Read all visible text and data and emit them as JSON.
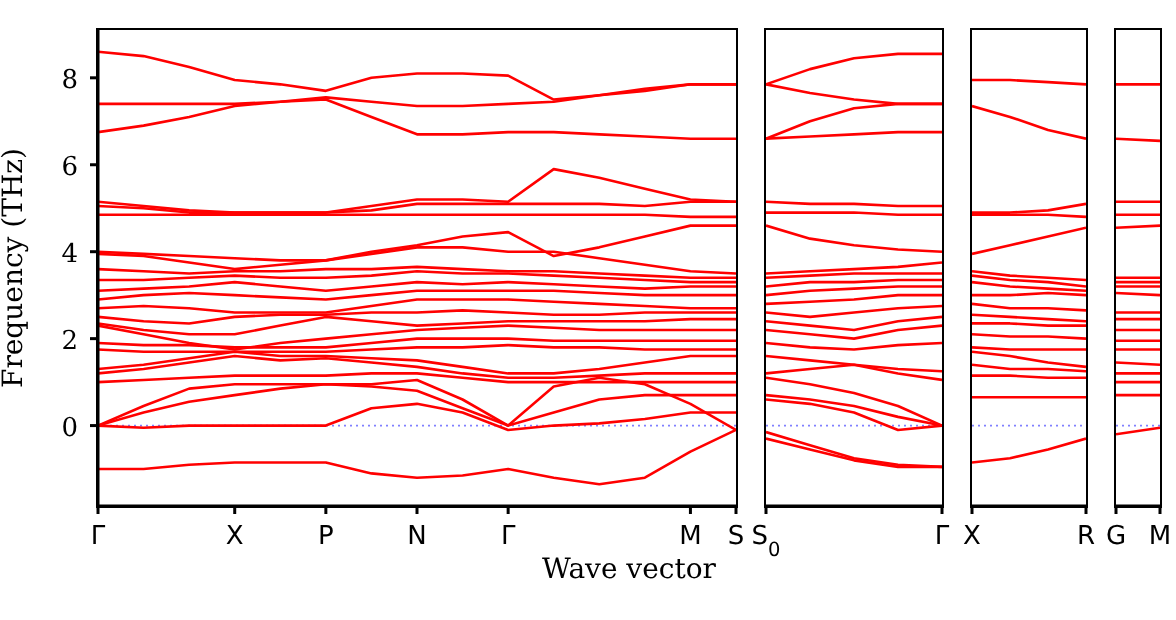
{
  "chart_data": [
    {
      "type": "line",
      "xlabel": "Wave vector",
      "ylabel": "Frequency (THz)",
      "categories": [
        "Γ",
        null,
        null,
        "X",
        null,
        "P",
        null,
        "N",
        null,
        "Γ",
        null,
        null,
        null,
        "M",
        "S"
      ],
      "ylim": [
        -1.85,
        9.1
      ],
      "yticks": [
        0,
        2,
        4,
        6,
        8
      ],
      "ref_lines": [
        {
          "axis": "y",
          "value": 0,
          "color": "#8080ff",
          "line_style": "dotted"
        }
      ],
      "series": [
        {
          "color": "#ff0000",
          "values": [
            8.6,
            8.5,
            8.25,
            7.95,
            7.85,
            7.7,
            8.0,
            8.1,
            8.1,
            8.05,
            7.5,
            7.6,
            7.7,
            7.85,
            7.85
          ]
        },
        {
          "color": "#ff0000",
          "values": [
            7.4,
            7.4,
            7.4,
            7.4,
            7.45,
            7.55,
            7.45,
            7.35,
            7.35,
            7.4,
            7.45,
            7.6,
            7.75,
            7.85,
            7.85
          ]
        },
        {
          "color": "#ff0000",
          "values": [
            6.75,
            6.9,
            7.1,
            7.35,
            7.45,
            7.5,
            7.1,
            6.7,
            6.7,
            6.75,
            6.75,
            6.7,
            6.65,
            6.6,
            6.6
          ]
        },
        {
          "color": "#ff0000",
          "values": [
            5.15,
            5.05,
            4.95,
            4.9,
            4.9,
            4.9,
            5.05,
            5.2,
            5.2,
            5.15,
            5.9,
            5.7,
            5.45,
            5.2,
            5.15
          ]
        },
        {
          "color": "#ff0000",
          "values": [
            5.05,
            5.0,
            4.9,
            4.9,
            4.9,
            4.9,
            4.95,
            5.1,
            5.1,
            5.1,
            5.1,
            5.1,
            5.05,
            5.15,
            5.15
          ]
        },
        {
          "color": "#ff0000",
          "values": [
            4.85,
            4.85,
            4.85,
            4.85,
            4.85,
            4.85,
            4.85,
            4.85,
            4.85,
            4.85,
            4.85,
            4.85,
            4.85,
            4.8,
            4.8
          ]
        },
        {
          "color": "#ff0000",
          "values": [
            4.0,
            3.95,
            3.9,
            3.85,
            3.8,
            3.8,
            4.0,
            4.15,
            4.35,
            4.45,
            3.9,
            4.1,
            4.35,
            4.6,
            4.6
          ]
        },
        {
          "color": "#ff0000",
          "values": [
            3.95,
            3.9,
            3.75,
            3.6,
            3.7,
            3.8,
            3.95,
            4.1,
            4.1,
            4.0,
            4.0,
            3.85,
            3.7,
            3.55,
            3.5
          ]
        },
        {
          "color": "#ff0000",
          "values": [
            3.6,
            3.55,
            3.5,
            3.55,
            3.55,
            3.6,
            3.6,
            3.65,
            3.6,
            3.55,
            3.55,
            3.5,
            3.45,
            3.4,
            3.4
          ]
        },
        {
          "color": "#ff0000",
          "values": [
            3.35,
            3.35,
            3.4,
            3.45,
            3.4,
            3.4,
            3.45,
            3.55,
            3.5,
            3.5,
            3.45,
            3.4,
            3.35,
            3.3,
            3.3
          ]
        },
        {
          "color": "#ff0000",
          "values": [
            3.1,
            3.15,
            3.2,
            3.3,
            3.2,
            3.1,
            3.2,
            3.3,
            3.25,
            3.3,
            3.25,
            3.2,
            3.15,
            3.2,
            3.2
          ]
        },
        {
          "color": "#ff0000",
          "values": [
            2.9,
            3.0,
            3.05,
            3.0,
            2.95,
            2.9,
            3.0,
            3.1,
            3.1,
            3.1,
            3.1,
            3.05,
            3.0,
            3.0,
            3.0
          ]
        },
        {
          "color": "#ff0000",
          "values": [
            2.7,
            2.75,
            2.7,
            2.6,
            2.6,
            2.6,
            2.75,
            2.9,
            2.9,
            2.9,
            2.85,
            2.8,
            2.75,
            2.7,
            2.7
          ]
        },
        {
          "color": "#ff0000",
          "values": [
            2.5,
            2.4,
            2.35,
            2.5,
            2.55,
            2.55,
            2.6,
            2.6,
            2.65,
            2.6,
            2.55,
            2.55,
            2.6,
            2.6,
            2.6
          ]
        },
        {
          "color": "#ff0000",
          "values": [
            2.35,
            2.2,
            2.1,
            2.1,
            2.3,
            2.5,
            2.4,
            2.3,
            2.35,
            2.4,
            2.4,
            2.4,
            2.4,
            2.45,
            2.45
          ]
        },
        {
          "color": "#ff0000",
          "values": [
            2.3,
            2.1,
            1.9,
            1.75,
            1.9,
            2.0,
            2.1,
            2.2,
            2.25,
            2.3,
            2.25,
            2.2,
            2.2,
            2.2,
            2.2
          ]
        },
        {
          "color": "#ff0000",
          "values": [
            1.9,
            1.85,
            1.85,
            1.8,
            1.8,
            1.8,
            1.9,
            2.0,
            2.0,
            2.0,
            1.95,
            1.95,
            1.95,
            1.95,
            1.95
          ]
        },
        {
          "color": "#ff0000",
          "values": [
            1.75,
            1.7,
            1.7,
            1.7,
            1.7,
            1.7,
            1.75,
            1.8,
            1.8,
            1.85,
            1.8,
            1.8,
            1.75,
            1.75,
            1.75
          ]
        },
        {
          "color": "#ff0000",
          "values": [
            1.3,
            1.4,
            1.55,
            1.7,
            1.6,
            1.6,
            1.55,
            1.5,
            1.35,
            1.2,
            1.2,
            1.3,
            1.45,
            1.6,
            1.6
          ]
        },
        {
          "color": "#ff0000",
          "values": [
            1.2,
            1.3,
            1.45,
            1.6,
            1.5,
            1.55,
            1.45,
            1.35,
            1.2,
            1.1,
            1.1,
            1.15,
            1.2,
            1.2,
            1.2
          ]
        },
        {
          "color": "#ff0000",
          "values": [
            1.0,
            1.05,
            1.1,
            1.15,
            1.15,
            1.15,
            1.2,
            1.2,
            1.1,
            1.0,
            1.0,
            1.0,
            1.0,
            1.0,
            1.0
          ]
        },
        {
          "color": "#ff0000",
          "values": [
            0,
            0.45,
            0.85,
            0.95,
            0.95,
            0.95,
            0.95,
            1.05,
            0.6,
            0,
            0.9,
            1.1,
            0.95,
            0.5,
            -0.1
          ]
        },
        {
          "color": "#ff0000",
          "values": [
            0,
            0.3,
            0.55,
            0.7,
            0.85,
            0.95,
            0.9,
            0.8,
            0.4,
            0,
            0.3,
            0.6,
            0.7,
            0.7,
            0.7
          ]
        },
        {
          "color": "#ff0000",
          "values": [
            0,
            -0.05,
            0,
            0,
            0,
            0,
            0.4,
            0.5,
            0.3,
            -0.1,
            0,
            0.05,
            0.15,
            0.3,
            0.3
          ]
        },
        {
          "color": "#ff0000",
          "values": [
            -1.0,
            -1.0,
            -0.9,
            -0.85,
            -0.85,
            -0.85,
            -1.1,
            -1.2,
            -1.15,
            -1.0,
            -1.2,
            -1.35,
            -1.2,
            -0.6,
            -0.1
          ]
        }
      ]
    },
    {
      "type": "line",
      "categories": [
        "S$_{0}$",
        null,
        null,
        null,
        "Γ"
      ],
      "ylim": [
        -1.85,
        9.1
      ],
      "yticks": [
        0,
        2,
        4,
        6,
        8
      ],
      "tick_labels": "x",
      "ref_lines": [
        {
          "axis": "y",
          "value": 0,
          "color": "#8080ff",
          "line_style": "dotted"
        }
      ],
      "series": [
        {
          "color": "#ff0000",
          "values": [
            7.85,
            8.2,
            8.45,
            8.55,
            8.55
          ]
        },
        {
          "color": "#ff0000",
          "values": [
            7.85,
            7.65,
            7.5,
            7.4,
            7.4
          ]
        },
        {
          "color": "#ff0000",
          "values": [
            6.6,
            7.0,
            7.3,
            7.4,
            7.4
          ]
        },
        {
          "color": "#ff0000",
          "values": [
            6.6,
            6.65,
            6.7,
            6.75,
            6.75
          ]
        },
        {
          "color": "#ff0000",
          "values": [
            5.15,
            5.1,
            5.1,
            5.05,
            5.05
          ]
        },
        {
          "color": "#ff0000",
          "values": [
            4.9,
            4.9,
            4.9,
            4.85,
            4.85
          ]
        },
        {
          "color": "#ff0000",
          "values": [
            4.6,
            4.3,
            4.15,
            4.05,
            4.0
          ]
        },
        {
          "color": "#ff0000",
          "values": [
            3.5,
            3.55,
            3.6,
            3.65,
            3.75
          ]
        },
        {
          "color": "#ff0000",
          "values": [
            3.4,
            3.45,
            3.5,
            3.5,
            3.5
          ]
        },
        {
          "color": "#ff0000",
          "values": [
            3.2,
            3.3,
            3.3,
            3.35,
            3.35
          ]
        },
        {
          "color": "#ff0000",
          "values": [
            3.0,
            3.1,
            3.15,
            3.2,
            3.2
          ]
        },
        {
          "color": "#ff0000",
          "values": [
            2.8,
            2.85,
            2.9,
            3.0,
            3.0
          ]
        },
        {
          "color": "#ff0000",
          "values": [
            2.6,
            2.5,
            2.6,
            2.7,
            2.75
          ]
        },
        {
          "color": "#ff0000",
          "values": [
            2.4,
            2.3,
            2.2,
            2.4,
            2.5
          ]
        },
        {
          "color": "#ff0000",
          "values": [
            2.2,
            2.1,
            2.0,
            2.2,
            2.3
          ]
        },
        {
          "color": "#ff0000",
          "values": [
            1.9,
            1.8,
            1.75,
            1.85,
            1.9
          ]
        },
        {
          "color": "#ff0000",
          "values": [
            1.6,
            1.5,
            1.4,
            1.3,
            1.25
          ]
        },
        {
          "color": "#ff0000",
          "values": [
            1.2,
            1.3,
            1.4,
            1.2,
            1.05
          ]
        },
        {
          "color": "#ff0000",
          "values": [
            1.1,
            0.95,
            0.75,
            0.45,
            0
          ]
        },
        {
          "color": "#ff0000",
          "values": [
            0.7,
            0.6,
            0.45,
            0.2,
            0
          ]
        },
        {
          "color": "#ff0000",
          "values": [
            0.6,
            0.5,
            0.3,
            -0.1,
            0
          ]
        },
        {
          "color": "#ff0000",
          "values": [
            -0.15,
            -0.45,
            -0.75,
            -0.9,
            -0.95
          ]
        },
        {
          "color": "#ff0000",
          "values": [
            -0.3,
            -0.55,
            -0.8,
            -0.95,
            -0.95
          ]
        }
      ]
    },
    {
      "type": "line",
      "categories": [
        "X",
        null,
        null,
        "R"
      ],
      "ylim": [
        -1.85,
        9.1
      ],
      "yticks": [
        0,
        2,
        4,
        6,
        8
      ],
      "tick_labels": "x",
      "ref_lines": [
        {
          "axis": "y",
          "value": 0,
          "color": "#8080ff",
          "line_style": "dotted"
        }
      ],
      "series": [
        {
          "color": "#ff0000",
          "values": [
            7.95,
            7.95,
            7.9,
            7.85
          ]
        },
        {
          "color": "#ff0000",
          "values": [
            7.35,
            7.1,
            6.8,
            6.6
          ]
        },
        {
          "color": "#ff0000",
          "values": [
            4.9,
            4.9,
            4.95,
            5.1
          ]
        },
        {
          "color": "#ff0000",
          "values": [
            4.85,
            4.85,
            4.85,
            4.8
          ]
        },
        {
          "color": "#ff0000",
          "values": [
            3.95,
            4.15,
            4.35,
            4.55
          ]
        },
        {
          "color": "#ff0000",
          "values": [
            3.55,
            3.45,
            3.4,
            3.35
          ]
        },
        {
          "color": "#ff0000",
          "values": [
            3.45,
            3.35,
            3.3,
            3.2
          ]
        },
        {
          "color": "#ff0000",
          "values": [
            3.3,
            3.2,
            3.15,
            3.1
          ]
        },
        {
          "color": "#ff0000",
          "values": [
            3.0,
            3.0,
            3.05,
            3.0
          ]
        },
        {
          "color": "#ff0000",
          "values": [
            2.8,
            2.7,
            2.7,
            2.65
          ]
        },
        {
          "color": "#ff0000",
          "values": [
            2.55,
            2.5,
            2.45,
            2.4
          ]
        },
        {
          "color": "#ff0000",
          "values": [
            2.35,
            2.35,
            2.3,
            2.3
          ]
        },
        {
          "color": "#ff0000",
          "values": [
            2.1,
            2.05,
            2.05,
            2.0
          ]
        },
        {
          "color": "#ff0000",
          "values": [
            1.8,
            1.75,
            1.75,
            1.75
          ]
        },
        {
          "color": "#ff0000",
          "values": [
            1.7,
            1.6,
            1.45,
            1.35
          ]
        },
        {
          "color": "#ff0000",
          "values": [
            1.4,
            1.3,
            1.3,
            1.25
          ]
        },
        {
          "color": "#ff0000",
          "values": [
            1.15,
            1.15,
            1.1,
            1.1
          ]
        },
        {
          "color": "#ff0000",
          "values": [
            0.65,
            0.65,
            0.65,
            0.65
          ]
        },
        {
          "color": "#ff0000",
          "values": [
            -0.85,
            -0.75,
            -0.55,
            -0.3
          ]
        }
      ]
    },
    {
      "type": "line",
      "categories": [
        "G",
        "M"
      ],
      "ylim": [
        -1.85,
        9.1
      ],
      "yticks": [
        0,
        2,
        4,
        6,
        8
      ],
      "tick_labels": "x",
      "ref_lines": [
        {
          "axis": "y",
          "value": 0,
          "color": "#8080ff",
          "line_style": "dotted"
        }
      ],
      "series": [
        {
          "color": "#ff0000",
          "values": [
            7.85,
            7.85
          ]
        },
        {
          "color": "#ff0000",
          "values": [
            6.6,
            6.55
          ]
        },
        {
          "color": "#ff0000",
          "values": [
            5.15,
            5.15
          ]
        },
        {
          "color": "#ff0000",
          "values": [
            4.85,
            4.85
          ]
        },
        {
          "color": "#ff0000",
          "values": [
            4.55,
            4.6
          ]
        },
        {
          "color": "#ff0000",
          "values": [
            3.4,
            3.4
          ]
        },
        {
          "color": "#ff0000",
          "values": [
            3.3,
            3.3
          ]
        },
        {
          "color": "#ff0000",
          "values": [
            3.2,
            3.2
          ]
        },
        {
          "color": "#ff0000",
          "values": [
            3.05,
            3.0
          ]
        },
        {
          "color": "#ff0000",
          "values": [
            2.6,
            2.6
          ]
        },
        {
          "color": "#ff0000",
          "values": [
            2.45,
            2.45
          ]
        },
        {
          "color": "#ff0000",
          "values": [
            2.2,
            2.2
          ]
        },
        {
          "color": "#ff0000",
          "values": [
            1.95,
            1.95
          ]
        },
        {
          "color": "#ff0000",
          "values": [
            1.75,
            1.75
          ]
        },
        {
          "color": "#ff0000",
          "values": [
            1.45,
            1.4
          ]
        },
        {
          "color": "#ff0000",
          "values": [
            1.2,
            1.2
          ]
        },
        {
          "color": "#ff0000",
          "values": [
            1.0,
            1.0
          ]
        },
        {
          "color": "#ff0000",
          "values": [
            0.7,
            0.7
          ]
        },
        {
          "color": "#ff0000",
          "values": [
            -0.2,
            -0.05
          ]
        }
      ]
    }
  ]
}
